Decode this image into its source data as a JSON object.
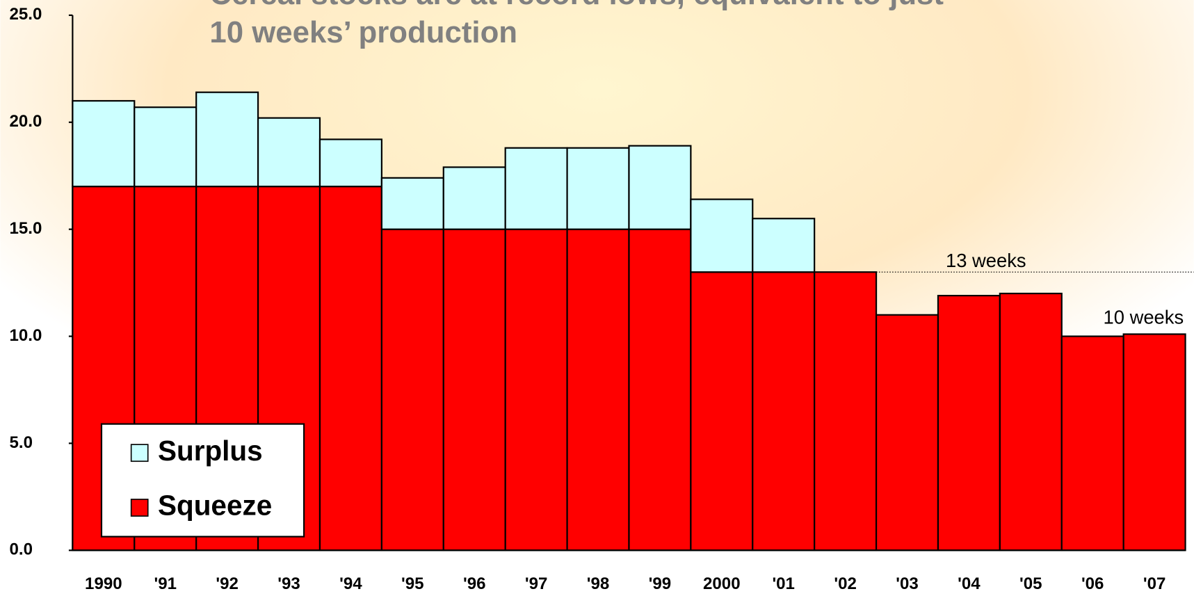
{
  "chart_data": {
    "type": "stacked_bar",
    "title_lines": [
      "Cereal stocks are at record lows, equivalent to just",
      "10 weeks’ production"
    ],
    "categories": [
      "1990",
      "'91",
      "'92",
      "'93",
      "'94",
      "'95",
      "'96",
      "'97",
      "'98",
      "'99",
      "2000",
      "'01",
      "'02",
      "'03",
      "'04",
      "'05",
      "'06",
      "'07"
    ],
    "series": [
      {
        "name": "Squeeze",
        "color": "#ff0000",
        "values": [
          17,
          17,
          17,
          17,
          17,
          15,
          15,
          15,
          15,
          15,
          13,
          13,
          13,
          11,
          11.9,
          12,
          10,
          10.1
        ]
      },
      {
        "name": "Surplus",
        "color": "#ccffff",
        "values": [
          4.0,
          3.7,
          4.4,
          3.2,
          2.2,
          2.4,
          2.9,
          3.8,
          3.8,
          3.9,
          3.4,
          2.5,
          0,
          0,
          0,
          0,
          0,
          0
        ]
      }
    ],
    "ylim": [
      0,
      25
    ],
    "yticks": [
      {
        "value": 0,
        "label": "0.0"
      },
      {
        "value": 5,
        "label": "5.0"
      },
      {
        "value": 10,
        "label": "10.0"
      },
      {
        "value": 15,
        "label": "15.0"
      },
      {
        "value": 20,
        "label": "20.0"
      },
      {
        "value": 25,
        "label": "25.0"
      }
    ],
    "annotations": [
      {
        "text": "13 weeks",
        "value": 13,
        "line": true
      },
      {
        "text": "10 weeks",
        "value": 10,
        "line": false
      }
    ],
    "legend": "lower left"
  }
}
